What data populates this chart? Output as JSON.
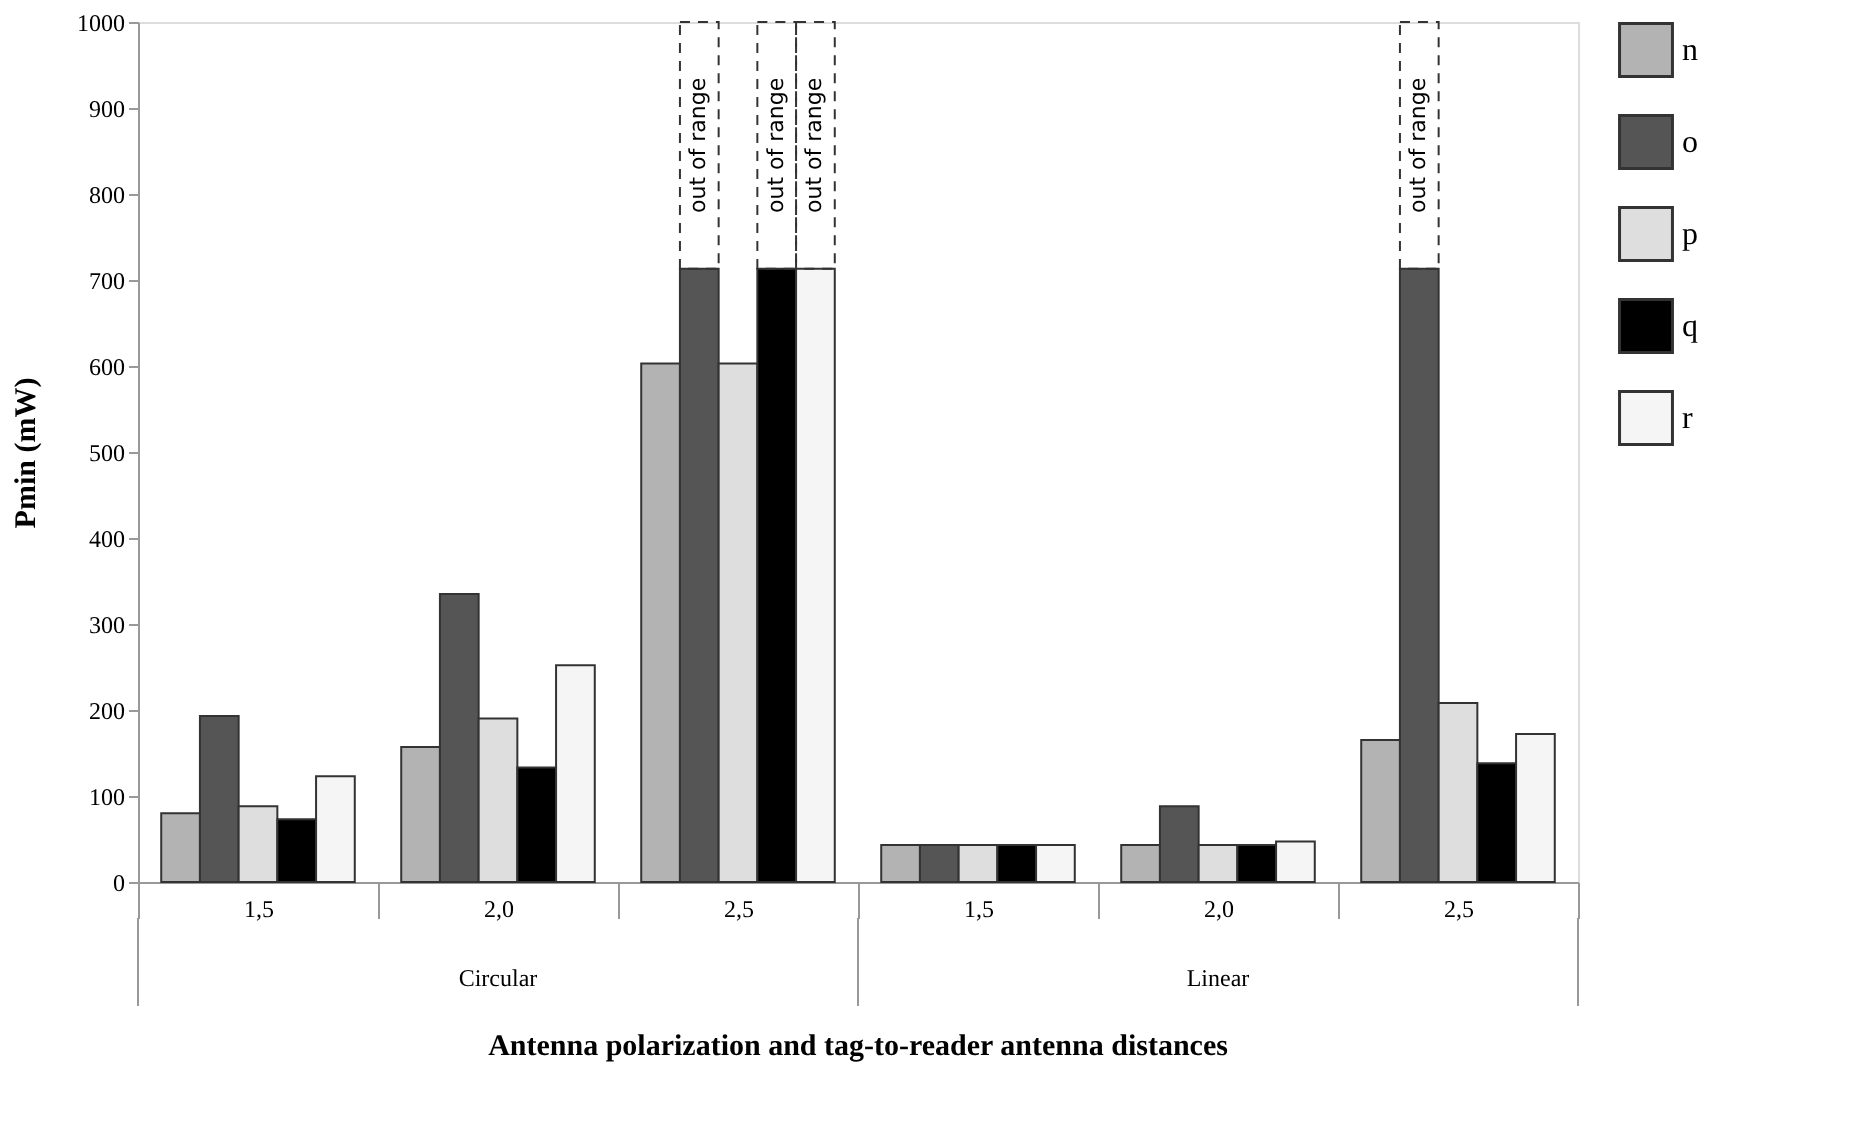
{
  "chart_data": {
    "type": "bar",
    "xlabel": "Antenna polarization and tag-to-reader antenna distances",
    "ylabel": "Pmin  (mW)",
    "categories": [
      "1,5",
      "2,0",
      "2,5",
      "1,5",
      "2,0",
      "2,5"
    ],
    "series": [
      {
        "name": "n",
        "color": "#b3b3b3",
        "values": [
          80,
          157,
          603,
          43,
          43,
          165
        ]
      },
      {
        "name": "o",
        "color": "#555555",
        "values": [
          193,
          335,
          713,
          43,
          88,
          713
        ]
      },
      {
        "name": "p",
        "color": "#dedede",
        "values": [
          88,
          190,
          603,
          43,
          43,
          208
        ]
      },
      {
        "name": "q",
        "color": "#000000",
        "values": [
          73,
          133,
          713,
          43,
          43,
          138
        ]
      },
      {
        "name": "r",
        "color": "#f5f5f5",
        "values": [
          123,
          252,
          713,
          43,
          47,
          172
        ]
      }
    ],
    "ylim": [
      0,
      1000
    ],
    "yticks": [
      0,
      100,
      200,
      300,
      400,
      500,
      600,
      700,
      800,
      900,
      1000
    ],
    "annotations": [
      "Circular",
      "Linear",
      "out of range",
      "out of range",
      "out of range",
      "out of range"
    ],
    "grid": false,
    "legend": "right"
  }
}
